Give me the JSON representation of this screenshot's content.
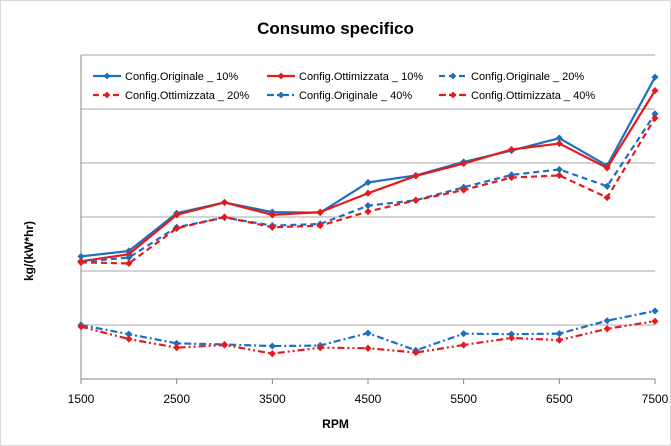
{
  "chart_data": {
    "type": "line",
    "title": "Consumo specifico",
    "xlabel": "RPM",
    "ylabel": "kg/(kW*hr)",
    "x": [
      1500,
      2000,
      2500,
      3000,
      3500,
      4000,
      4500,
      5000,
      5500,
      6000,
      6500,
      7000,
      7500
    ],
    "xlim": [
      1500,
      7500
    ],
    "ylim": [
      0,
      6
    ],
    "y_tick_labels_shown": false,
    "grid": "horizontal",
    "legend_position": "top",
    "series": [
      {
        "name": "Config.Originale _ 10%",
        "color": "#1f6fbf",
        "dash": "solid",
        "marker": "diamond",
        "values": [
          2.27,
          2.37,
          3.07,
          3.27,
          3.09,
          3.08,
          3.64,
          3.77,
          4.02,
          4.23,
          4.46,
          3.95,
          5.59
        ]
      },
      {
        "name": "Config.Ottimizzata _ 10%",
        "color": "#e41a1c",
        "dash": "solid",
        "marker": "diamond",
        "values": [
          2.18,
          2.31,
          3.04,
          3.27,
          3.04,
          3.09,
          3.44,
          3.76,
          3.99,
          4.25,
          4.36,
          3.91,
          5.34
        ]
      },
      {
        "name": "Config.Originale _ 20%",
        "color": "#1f6fbf",
        "dash": "dash",
        "marker": "diamond",
        "values": [
          2.17,
          2.25,
          2.81,
          2.99,
          2.84,
          2.87,
          3.21,
          3.31,
          3.55,
          3.78,
          3.88,
          3.57,
          4.91
        ]
      },
      {
        "name": "Config.Ottimizzata _ 20%",
        "color": "#e41a1c",
        "dash": "dash",
        "marker": "diamond",
        "values": [
          2.16,
          2.14,
          2.79,
          3.0,
          2.81,
          2.84,
          3.1,
          3.31,
          3.5,
          3.73,
          3.77,
          3.36,
          4.83
        ]
      },
      {
        "name": "Config.Originale _ 40%",
        "color": "#1f6fbf",
        "dash": "dashdot",
        "marker": "diamond",
        "values": [
          1.0,
          0.83,
          0.66,
          0.64,
          0.61,
          0.62,
          0.85,
          0.53,
          0.84,
          0.83,
          0.84,
          1.08,
          1.26
        ]
      },
      {
        "name": "Config.Ottimizzata _ 40%",
        "color": "#e41a1c",
        "dash": "dashdotdot",
        "marker": "diamond",
        "values": [
          0.97,
          0.74,
          0.58,
          0.63,
          0.47,
          0.58,
          0.57,
          0.49,
          0.63,
          0.76,
          0.72,
          0.93,
          1.07
        ]
      }
    ]
  }
}
